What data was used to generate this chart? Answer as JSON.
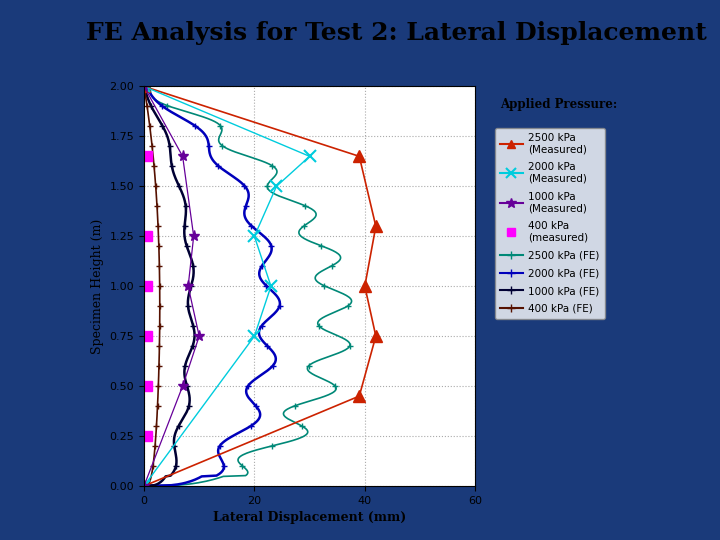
{
  "title": "FE Analysis for Test 2: Lateral Displacement",
  "xlabel": "Lateral Displacement (mm)",
  "ylabel": "Specimen Height (m)",
  "xlim": [
    0,
    60
  ],
  "ylim": [
    0,
    2
  ],
  "xticks": [
    0,
    20,
    40,
    60
  ],
  "yticks": [
    0,
    0.25,
    0.5,
    0.75,
    1,
    1.25,
    1.5,
    1.75,
    2
  ],
  "slide_bg": "#1a3a7a",
  "title_bg": "#ffff99",
  "title_border": "#9966cc",
  "plot_bg": "#ffffff",
  "legend_title": "Applied Pressure:",
  "measured_2500_x": [
    0,
    39,
    42,
    40,
    42,
    39,
    0
  ],
  "measured_2500_y": [
    0.0,
    0.45,
    0.75,
    1.0,
    1.3,
    1.65,
    2.0
  ],
  "measured_2000_x": [
    0,
    20,
    23,
    20,
    24,
    30,
    0
  ],
  "measured_2000_y": [
    0.0,
    0.75,
    1.0,
    1.25,
    1.5,
    1.65,
    2.0
  ],
  "measured_1000_x": [
    0,
    7,
    10,
    8,
    9,
    7,
    0
  ],
  "measured_1000_y": [
    0.0,
    0.5,
    0.75,
    1.0,
    1.25,
    1.65,
    2.0
  ],
  "measured_400_x": [
    0.5,
    0.5,
    0.5,
    0.5,
    0.5,
    0.5
  ],
  "measured_400_y": [
    0.25,
    0.5,
    0.75,
    1.0,
    1.25,
    1.65
  ],
  "color_m2500": "#cc2200",
  "color_m2000": "#00ccdd",
  "color_m1000": "#660099",
  "color_m400": "#ff00ff",
  "color_fe2500": "#008877",
  "color_fe2000": "#0000bb",
  "color_fe1000": "#000033",
  "color_fe400": "#551100"
}
